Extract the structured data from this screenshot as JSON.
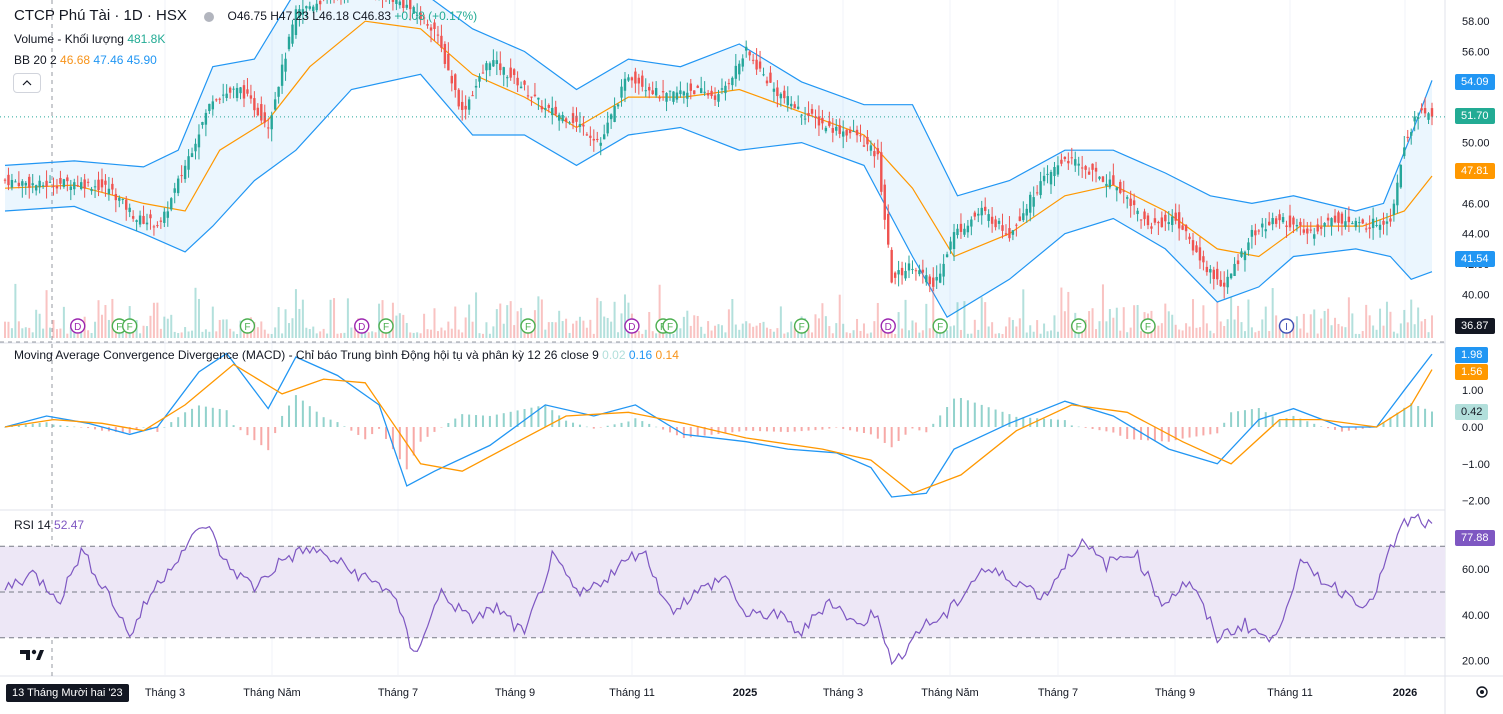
{
  "header": {
    "symbol_title": "CTCP Phú Tài · 1D · HSX",
    "open": "O46.75",
    "high": "H47.23",
    "low": "L46.18",
    "close": "C46.83",
    "change": "+0.08 (+0.17%)"
  },
  "legend": {
    "volume_label": "Volume - Khối lượng",
    "volume_value": "481.8K",
    "bb_label": "BB 20 2",
    "bb_basis": "46.68",
    "bb_upper": "47.46",
    "bb_lower": "45.90",
    "macd_label": "Moving Average Convergence Divergence (MACD) - Chỉ báo Trung bình Động hội tụ và phân kỳ",
    "macd_params": "12 26 close 9",
    "macd_hist": "0.02",
    "macd_line": "0.16",
    "macd_signal": "0.14",
    "rsi_label": "RSI 14",
    "rsi_value": "52.47"
  },
  "colors": {
    "up": "#26a69a",
    "down": "#ef5350",
    "bb_band": "#2196f3",
    "bb_basis": "#ff9800",
    "macd_line": "#2196f3",
    "signal_line": "#ff9800",
    "rsi_line": "#7e57c2",
    "rsi_band": "#ede7f6"
  },
  "price_badges": {
    "bb_upper": "54.09",
    "last_close": "51.70",
    "bb_basis": "47.81",
    "bb_lower": "41.54",
    "crosshair": "36.87"
  },
  "macd_badges": {
    "macd": "1.98",
    "signal": "1.56",
    "hist": "0.42"
  },
  "rsi_badge": "77.88",
  "crosshair_date": "13 Tháng Mười hai '23",
  "chart_data": [
    {
      "type": "candlestick",
      "panel": "price",
      "y_ticks": [
        "58.00",
        "56.00",
        "54.00",
        "52.00",
        "50.00",
        "48.00",
        "46.00",
        "44.00",
        "42.00",
        "40.00",
        "38.00"
      ],
      "ylim": [
        37,
        59
      ],
      "x_ticks": [
        "Tháng 3",
        "Tháng Năm",
        "Tháng 7",
        "Tháng 9",
        "Tháng 11",
        "2025",
        "Tháng 3",
        "Tháng Năm",
        "Tháng 7",
        "Tháng 9",
        "Tháng 11",
        "2026"
      ],
      "close_series": [
        {
          "t": 0,
          "v": 47.5
        },
        {
          "t": 10,
          "v": 47.2
        },
        {
          "t": 20,
          "v": 47.4
        },
        {
          "t": 30,
          "v": 47.0
        },
        {
          "t": 38,
          "v": 45.0
        },
        {
          "t": 45,
          "v": 44.6
        },
        {
          "t": 52,
          "v": 48.5
        },
        {
          "t": 60,
          "v": 53.0
        },
        {
          "t": 68,
          "v": 53.5
        },
        {
          "t": 76,
          "v": 51.2
        },
        {
          "t": 84,
          "v": 58.5
        },
        {
          "t": 92,
          "v": 59.5
        },
        {
          "t": 100,
          "v": 60.5
        },
        {
          "t": 108,
          "v": 60.0
        },
        {
          "t": 116,
          "v": 59.0
        },
        {
          "t": 124,
          "v": 57.5
        },
        {
          "t": 132,
          "v": 52.0
        },
        {
          "t": 140,
          "v": 55.5
        },
        {
          "t": 148,
          "v": 54.0
        },
        {
          "t": 156,
          "v": 52.2
        },
        {
          "t": 164,
          "v": 51.5
        },
        {
          "t": 172,
          "v": 50.0
        },
        {
          "t": 180,
          "v": 54.5
        },
        {
          "t": 190,
          "v": 53.0
        },
        {
          "t": 198,
          "v": 53.5
        },
        {
          "t": 206,
          "v": 53.0
        },
        {
          "t": 214,
          "v": 56.0
        },
        {
          "t": 222,
          "v": 53.5
        },
        {
          "t": 230,
          "v": 52.0
        },
        {
          "t": 238,
          "v": 51.0
        },
        {
          "t": 246,
          "v": 50.5
        },
        {
          "t": 252,
          "v": 49.0
        },
        {
          "t": 256,
          "v": 41.0
        },
        {
          "t": 262,
          "v": 42.0
        },
        {
          "t": 268,
          "v": 40.5
        },
        {
          "t": 274,
          "v": 44.0
        },
        {
          "t": 282,
          "v": 45.5
        },
        {
          "t": 290,
          "v": 44.0
        },
        {
          "t": 298,
          "v": 47.0
        },
        {
          "t": 306,
          "v": 49.0
        },
        {
          "t": 314,
          "v": 48.0
        },
        {
          "t": 322,
          "v": 47.0
        },
        {
          "t": 330,
          "v": 44.5
        },
        {
          "t": 338,
          "v": 45.0
        },
        {
          "t": 346,
          "v": 42.0
        },
        {
          "t": 352,
          "v": 40.5
        },
        {
          "t": 360,
          "v": 44.0
        },
        {
          "t": 368,
          "v": 45.0
        },
        {
          "t": 376,
          "v": 44.0
        },
        {
          "t": 384,
          "v": 45.0
        },
        {
          "t": 392,
          "v": 44.5
        },
        {
          "t": 400,
          "v": 45.0
        },
        {
          "t": 404,
          "v": 50.0
        },
        {
          "t": 408,
          "v": 52.0
        },
        {
          "t": 412,
          "v": 51.7
        }
      ],
      "bb_upper_series": [
        {
          "t": 0,
          "v": 48.5
        },
        {
          "t": 20,
          "v": 48.8
        },
        {
          "t": 40,
          "v": 48.4
        },
        {
          "t": 50,
          "v": 49.5
        },
        {
          "t": 60,
          "v": 55.0
        },
        {
          "t": 72,
          "v": 55.5
        },
        {
          "t": 84,
          "v": 60.0
        },
        {
          "t": 100,
          "v": 61.5
        },
        {
          "t": 120,
          "v": 60.0
        },
        {
          "t": 135,
          "v": 57.5
        },
        {
          "t": 150,
          "v": 56.0
        },
        {
          "t": 165,
          "v": 53.5
        },
        {
          "t": 180,
          "v": 55.5
        },
        {
          "t": 195,
          "v": 55.0
        },
        {
          "t": 212,
          "v": 56.5
        },
        {
          "t": 230,
          "v": 54.0
        },
        {
          "t": 248,
          "v": 52.5
        },
        {
          "t": 262,
          "v": 52.5
        },
        {
          "t": 275,
          "v": 46.5
        },
        {
          "t": 290,
          "v": 47.5
        },
        {
          "t": 306,
          "v": 49.5
        },
        {
          "t": 320,
          "v": 49.5
        },
        {
          "t": 335,
          "v": 48.0
        },
        {
          "t": 348,
          "v": 46.5
        },
        {
          "t": 360,
          "v": 46.0
        },
        {
          "t": 372,
          "v": 46.5
        },
        {
          "t": 390,
          "v": 45.5
        },
        {
          "t": 398,
          "v": 46.0
        },
        {
          "t": 406,
          "v": 50.5
        },
        {
          "t": 412,
          "v": 54.1
        }
      ],
      "bb_lower_series": [
        {
          "t": 0,
          "v": 45.5
        },
        {
          "t": 20,
          "v": 45.8
        },
        {
          "t": 40,
          "v": 44.0
        },
        {
          "t": 52,
          "v": 42.8
        },
        {
          "t": 60,
          "v": 44.5
        },
        {
          "t": 72,
          "v": 47.5
        },
        {
          "t": 84,
          "v": 49.5
        },
        {
          "t": 100,
          "v": 53.5
        },
        {
          "t": 120,
          "v": 54.5
        },
        {
          "t": 135,
          "v": 50.5
        },
        {
          "t": 150,
          "v": 50.5
        },
        {
          "t": 165,
          "v": 48.5
        },
        {
          "t": 180,
          "v": 50.5
        },
        {
          "t": 195,
          "v": 51.0
        },
        {
          "t": 212,
          "v": 49.5
        },
        {
          "t": 230,
          "v": 50.0
        },
        {
          "t": 248,
          "v": 48.5
        },
        {
          "t": 262,
          "v": 42.5
        },
        {
          "t": 272,
          "v": 38.5
        },
        {
          "t": 290,
          "v": 41.0
        },
        {
          "t": 306,
          "v": 44.0
        },
        {
          "t": 320,
          "v": 45.0
        },
        {
          "t": 335,
          "v": 43.0
        },
        {
          "t": 350,
          "v": 39.5
        },
        {
          "t": 362,
          "v": 40.5
        },
        {
          "t": 372,
          "v": 42.5
        },
        {
          "t": 390,
          "v": 43.0
        },
        {
          "t": 400,
          "v": 42.5
        },
        {
          "t": 406,
          "v": 41.0
        },
        {
          "t": 412,
          "v": 41.5
        }
      ],
      "bb_basis_series": [
        {
          "t": 0,
          "v": 47.0
        },
        {
          "t": 20,
          "v": 47.2
        },
        {
          "t": 40,
          "v": 46.0
        },
        {
          "t": 52,
          "v": 45.5
        },
        {
          "t": 62,
          "v": 49.5
        },
        {
          "t": 76,
          "v": 51.5
        },
        {
          "t": 88,
          "v": 55.0
        },
        {
          "t": 104,
          "v": 58.0
        },
        {
          "t": 120,
          "v": 57.5
        },
        {
          "t": 135,
          "v": 54.5
        },
        {
          "t": 150,
          "v": 53.0
        },
        {
          "t": 165,
          "v": 51.0
        },
        {
          "t": 180,
          "v": 53.0
        },
        {
          "t": 196,
          "v": 53.0
        },
        {
          "t": 212,
          "v": 53.5
        },
        {
          "t": 230,
          "v": 52.0
        },
        {
          "t": 248,
          "v": 50.5
        },
        {
          "t": 262,
          "v": 47.0
        },
        {
          "t": 274,
          "v": 42.5
        },
        {
          "t": 290,
          "v": 44.0
        },
        {
          "t": 306,
          "v": 46.5
        },
        {
          "t": 320,
          "v": 47.2
        },
        {
          "t": 335,
          "v": 45.5
        },
        {
          "t": 350,
          "v": 43.0
        },
        {
          "t": 362,
          "v": 42.5
        },
        {
          "t": 374,
          "v": 44.5
        },
        {
          "t": 392,
          "v": 44.5
        },
        {
          "t": 404,
          "v": 45.5
        },
        {
          "t": 412,
          "v": 47.8
        }
      ],
      "event_markers": [
        {
          "t": 21,
          "label": "D"
        },
        {
          "t": 33,
          "label": "F"
        },
        {
          "t": 36,
          "label": "F"
        },
        {
          "t": 70,
          "label": "F"
        },
        {
          "t": 103,
          "label": "D"
        },
        {
          "t": 110,
          "label": "F"
        },
        {
          "t": 151,
          "label": "F"
        },
        {
          "t": 181,
          "label": "D"
        },
        {
          "t": 190,
          "label": "F"
        },
        {
          "t": 192,
          "label": "F"
        },
        {
          "t": 230,
          "label": "F"
        },
        {
          "t": 255,
          "label": "D"
        },
        {
          "t": 270,
          "label": "F"
        },
        {
          "t": 310,
          "label": "F"
        },
        {
          "t": 330,
          "label": "F"
        },
        {
          "t": 370,
          "label": "I"
        }
      ]
    },
    {
      "type": "line",
      "panel": "macd",
      "y_ticks": [
        "1.00",
        "0.00",
        "−1.00",
        "−2.00"
      ],
      "ylim": [
        -2.2,
        2.2
      ],
      "macd_series": [
        {
          "t": 0,
          "v": 0.0
        },
        {
          "t": 12,
          "v": 0.3
        },
        {
          "t": 24,
          "v": 0.1
        },
        {
          "t": 36,
          "v": -0.2
        },
        {
          "t": 44,
          "v": 0.0
        },
        {
          "t": 56,
          "v": 1.5
        },
        {
          "t": 64,
          "v": 2.0
        },
        {
          "t": 76,
          "v": 0.5
        },
        {
          "t": 84,
          "v": 1.9
        },
        {
          "t": 96,
          "v": 1.4
        },
        {
          "t": 108,
          "v": 0.6
        },
        {
          "t": 116,
          "v": -1.6
        },
        {
          "t": 124,
          "v": -1.2
        },
        {
          "t": 140,
          "v": -0.5
        },
        {
          "t": 156,
          "v": 0.6
        },
        {
          "t": 170,
          "v": 0.3
        },
        {
          "t": 182,
          "v": 0.6
        },
        {
          "t": 196,
          "v": -0.2
        },
        {
          "t": 214,
          "v": -0.4
        },
        {
          "t": 226,
          "v": -0.6
        },
        {
          "t": 240,
          "v": -0.7
        },
        {
          "t": 250,
          "v": -1.1
        },
        {
          "t": 256,
          "v": -1.9
        },
        {
          "t": 266,
          "v": -1.8
        },
        {
          "t": 274,
          "v": -0.6
        },
        {
          "t": 290,
          "v": 0.1
        },
        {
          "t": 306,
          "v": 0.7
        },
        {
          "t": 320,
          "v": 0.3
        },
        {
          "t": 336,
          "v": -0.6
        },
        {
          "t": 350,
          "v": -1.0
        },
        {
          "t": 362,
          "v": 0.2
        },
        {
          "t": 372,
          "v": 0.5
        },
        {
          "t": 386,
          "v": 0.0
        },
        {
          "t": 396,
          "v": 0.0
        },
        {
          "t": 404,
          "v": 1.0
        },
        {
          "t": 412,
          "v": 1.98
        }
      ],
      "signal_series": [
        {
          "t": 0,
          "v": 0.0
        },
        {
          "t": 14,
          "v": 0.2
        },
        {
          "t": 28,
          "v": 0.1
        },
        {
          "t": 40,
          "v": -0.1
        },
        {
          "t": 52,
          "v": 0.6
        },
        {
          "t": 66,
          "v": 1.7
        },
        {
          "t": 80,
          "v": 0.9
        },
        {
          "t": 92,
          "v": 1.3
        },
        {
          "t": 104,
          "v": 1.2
        },
        {
          "t": 120,
          "v": -1.0
        },
        {
          "t": 132,
          "v": -1.2
        },
        {
          "t": 148,
          "v": -0.4
        },
        {
          "t": 162,
          "v": 0.3
        },
        {
          "t": 180,
          "v": 0.4
        },
        {
          "t": 196,
          "v": 0.1
        },
        {
          "t": 214,
          "v": -0.3
        },
        {
          "t": 236,
          "v": -0.6
        },
        {
          "t": 250,
          "v": -0.9
        },
        {
          "t": 262,
          "v": -1.8
        },
        {
          "t": 276,
          "v": -1.3
        },
        {
          "t": 292,
          "v": -0.1
        },
        {
          "t": 308,
          "v": 0.6
        },
        {
          "t": 324,
          "v": 0.4
        },
        {
          "t": 340,
          "v": -0.4
        },
        {
          "t": 354,
          "v": -1.0
        },
        {
          "t": 368,
          "v": 0.2
        },
        {
          "t": 380,
          "v": 0.2
        },
        {
          "t": 396,
          "v": 0.0
        },
        {
          "t": 406,
          "v": 0.6
        },
        {
          "t": 412,
          "v": 1.56
        }
      ]
    },
    {
      "type": "line",
      "panel": "rsi",
      "y_ticks": [
        "60.00",
        "40.00",
        "20.00"
      ],
      "ylim": [
        15,
        85
      ],
      "bands": [
        30,
        50,
        70
      ],
      "rsi_series": [
        {
          "t": 0,
          "v": 52
        },
        {
          "t": 8,
          "v": 58
        },
        {
          "t": 16,
          "v": 47
        },
        {
          "t": 22,
          "v": 68
        },
        {
          "t": 30,
          "v": 49
        },
        {
          "t": 36,
          "v": 31
        },
        {
          "t": 42,
          "v": 49
        },
        {
          "t": 50,
          "v": 66
        },
        {
          "t": 58,
          "v": 80
        },
        {
          "t": 64,
          "v": 62
        },
        {
          "t": 72,
          "v": 52
        },
        {
          "t": 80,
          "v": 64
        },
        {
          "t": 88,
          "v": 69
        },
        {
          "t": 96,
          "v": 63
        },
        {
          "t": 104,
          "v": 56
        },
        {
          "t": 112,
          "v": 50
        },
        {
          "t": 118,
          "v": 22
        },
        {
          "t": 126,
          "v": 50
        },
        {
          "t": 134,
          "v": 38
        },
        {
          "t": 142,
          "v": 43
        },
        {
          "t": 150,
          "v": 31
        },
        {
          "t": 158,
          "v": 65
        },
        {
          "t": 166,
          "v": 48
        },
        {
          "t": 174,
          "v": 57
        },
        {
          "t": 184,
          "v": 69
        },
        {
          "t": 192,
          "v": 42
        },
        {
          "t": 200,
          "v": 50
        },
        {
          "t": 208,
          "v": 57
        },
        {
          "t": 214,
          "v": 39
        },
        {
          "t": 222,
          "v": 41
        },
        {
          "t": 230,
          "v": 32
        },
        {
          "t": 238,
          "v": 47
        },
        {
          "t": 246,
          "v": 35
        },
        {
          "t": 252,
          "v": 42
        },
        {
          "t": 256,
          "v": 17
        },
        {
          "t": 264,
          "v": 34
        },
        {
          "t": 272,
          "v": 40
        },
        {
          "t": 282,
          "v": 60
        },
        {
          "t": 292,
          "v": 55
        },
        {
          "t": 300,
          "v": 48
        },
        {
          "t": 310,
          "v": 72
        },
        {
          "t": 318,
          "v": 62
        },
        {
          "t": 326,
          "v": 68
        },
        {
          "t": 334,
          "v": 45
        },
        {
          "t": 342,
          "v": 55
        },
        {
          "t": 350,
          "v": 30
        },
        {
          "t": 358,
          "v": 36
        },
        {
          "t": 366,
          "v": 28
        },
        {
          "t": 374,
          "v": 62
        },
        {
          "t": 384,
          "v": 52
        },
        {
          "t": 394,
          "v": 44
        },
        {
          "t": 400,
          "v": 68
        },
        {
          "t": 404,
          "v": 80
        },
        {
          "t": 408,
          "v": 82
        },
        {
          "t": 412,
          "v": 77.9
        }
      ]
    }
  ]
}
